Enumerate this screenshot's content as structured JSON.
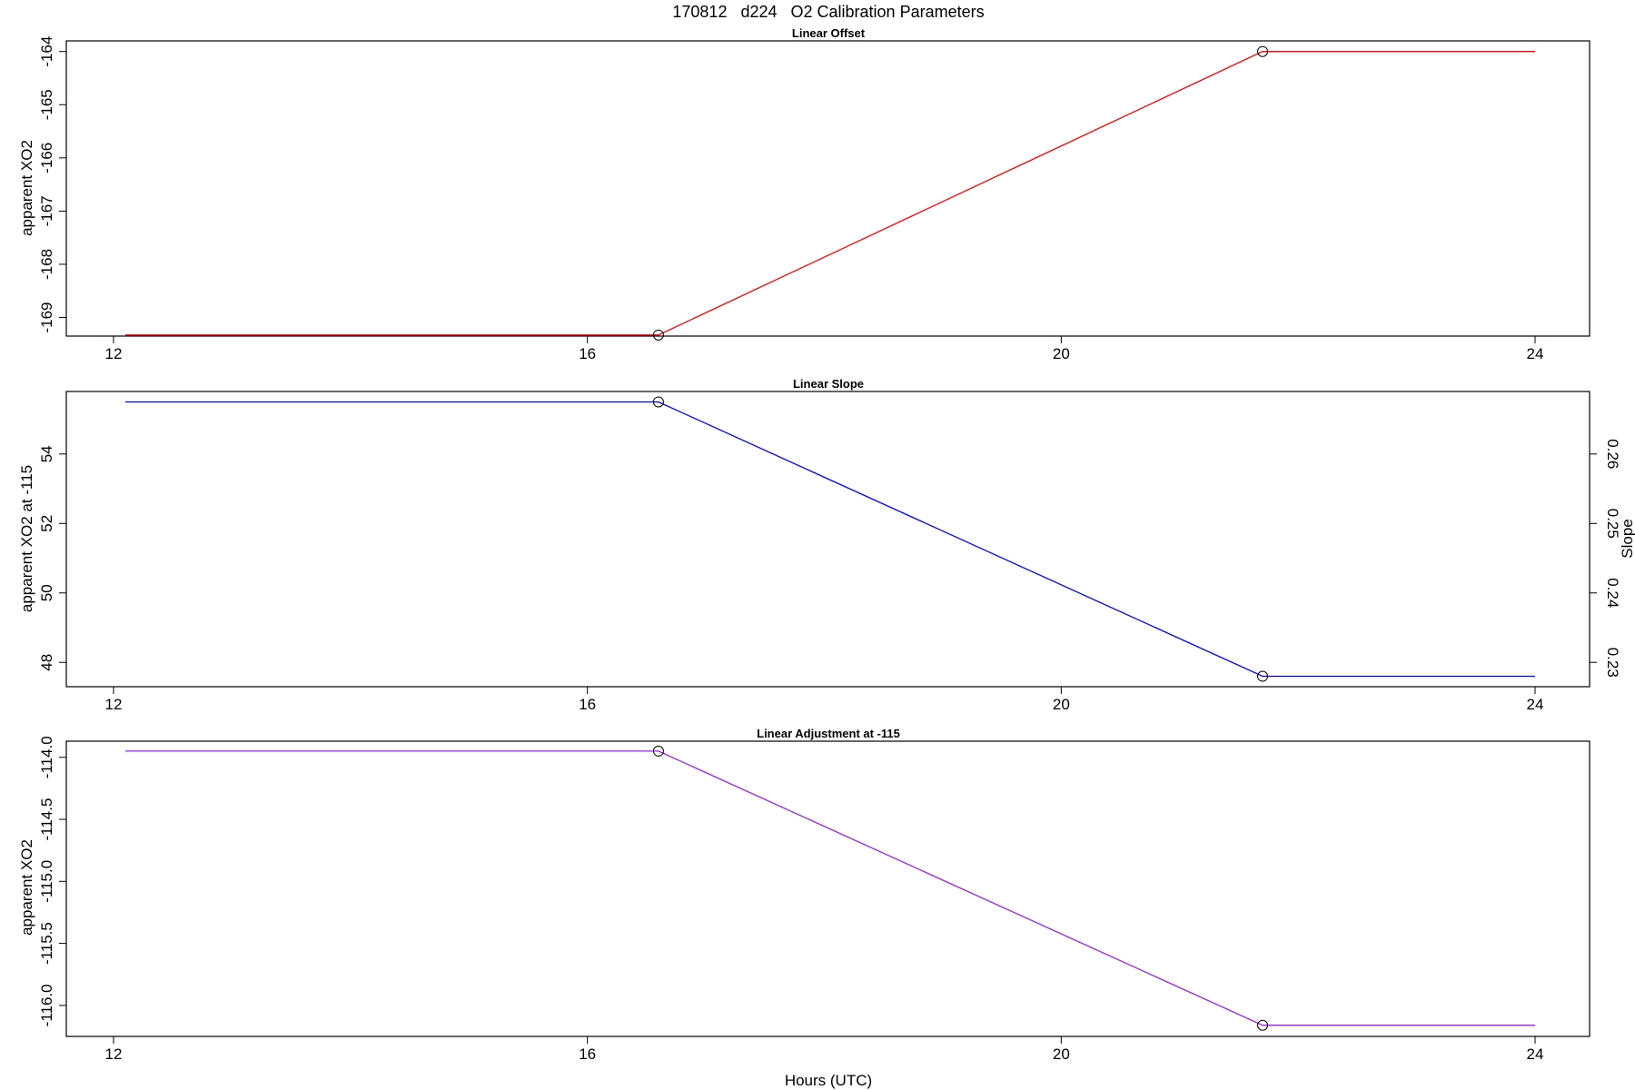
{
  "figure": {
    "title": "170812   d224   O2 Calibration Parameters",
    "xlabel": "Hours (UTC)"
  },
  "chart_data": [
    {
      "type": "line",
      "title": "Linear Offset",
      "xlabel": "",
      "ylabel": "apparent XO2",
      "xlim": [
        12,
        24
      ],
      "x_ticks": [
        12,
        16,
        20,
        24
      ],
      "ylim": [
        -169.35,
        -163.8
      ],
      "y_ticks": [
        -169,
        -168,
        -167,
        -166,
        -165,
        -164
      ],
      "y_tick_labels": [
        "-169",
        "-168",
        "-167",
        "-166",
        "-165",
        "-164"
      ],
      "color": "#ff0000",
      "series": [
        {
          "x": [
            12.1,
            16.6,
            21.7,
            24.0
          ],
          "y": [
            -169.33,
            -169.33,
            -164.0,
            -164.0
          ]
        }
      ],
      "markers": {
        "x": [
          16.6,
          21.7
        ],
        "y": [
          -169.33,
          -164.0
        ]
      }
    },
    {
      "type": "line",
      "title": "Linear Slope",
      "xlabel": "",
      "ylabel": "apparent XO2 at -115",
      "xlim": [
        12,
        24
      ],
      "x_ticks": [
        12,
        16,
        20,
        24
      ],
      "ylim": [
        47.3,
        55.8
      ],
      "y_ticks": [
        48,
        50,
        52,
        54
      ],
      "y_tick_labels": [
        "48",
        "50",
        "52",
        "54"
      ],
      "y2label": "Slope",
      "y2_ticks": [
        0.23,
        0.24,
        0.25,
        0.26
      ],
      "y2_tick_labels": [
        "0.23",
        "0.24",
        "0.25",
        "0.26"
      ],
      "color": "#0000ff",
      "series": [
        {
          "x": [
            12.1,
            16.6,
            21.7,
            24.0
          ],
          "y": [
            55.5,
            55.5,
            47.6,
            47.6
          ]
        }
      ],
      "markers": {
        "x": [
          16.6,
          21.7
        ],
        "y": [
          55.5,
          47.6
        ]
      }
    },
    {
      "type": "line",
      "title": "Linear Adjustment at -115",
      "xlabel": "Hours (UTC)",
      "ylabel": "apparent XO2",
      "xlim": [
        12,
        24
      ],
      "x_ticks": [
        12,
        16,
        20,
        24
      ],
      "ylim": [
        -116.25,
        -113.87
      ],
      "y_ticks": [
        -116.0,
        -115.5,
        -115.0,
        -114.5,
        -114.0
      ],
      "y_tick_labels": [
        "-116.0",
        "-115.5",
        "-115.0",
        "-114.5",
        "-114.0"
      ],
      "color": "#a020f0",
      "series": [
        {
          "x": [
            12.1,
            16.6,
            21.7,
            24.0
          ],
          "y": [
            -113.95,
            -113.95,
            -116.16,
            -116.16
          ]
        }
      ],
      "markers": {
        "x": [
          16.6,
          21.7
        ],
        "y": [
          -113.95,
          -116.16
        ]
      }
    }
  ]
}
